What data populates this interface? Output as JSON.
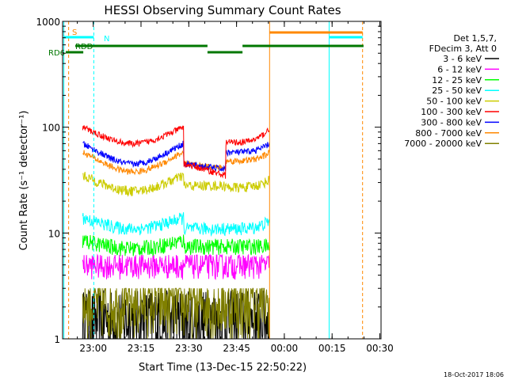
{
  "chart_data": {
    "type": "line",
    "title": "HESSI Observing Summary Count Rates",
    "xlabel": "Start Time (13-Dec-15 22:50:22)",
    "ylabel": "Count Rate (s⁻¹ detector⁻¹)",
    "y_scale": "log",
    "ylim": [
      1,
      1000
    ],
    "x_range_minutes": [
      0,
      100
    ],
    "x_ticks": [
      {
        "label": "23:00",
        "minute": 9.63
      },
      {
        "label": "23:15",
        "minute": 24.63
      },
      {
        "label": "23:30",
        "minute": 39.63
      },
      {
        "label": "23:45",
        "minute": 54.63
      },
      {
        "label": "00:00",
        "minute": 69.63
      },
      {
        "label": "00:15",
        "minute": 84.63
      },
      {
        "label": "00:30",
        "minute": 99.63
      }
    ],
    "y_ticks": [
      {
        "label": "1",
        "value": 1
      },
      {
        "label": "10",
        "value": 10
      },
      {
        "label": "100",
        "value": 100
      },
      {
        "label": "1000",
        "value": 1000
      }
    ],
    "legend_header": [
      "Det 1,5,7,",
      "FDecim 3, Att 0"
    ],
    "legend_position": "right",
    "series": [
      {
        "name": "3 - 6 keV",
        "color": "#000000",
        "level": "~1-3, highly noisy"
      },
      {
        "name": "6 - 12 keV",
        "color": "#ff00ff",
        "level": "~4-6"
      },
      {
        "name": "12 - 25 keV",
        "color": "#00ff00",
        "level": "~7-9"
      },
      {
        "name": "25 - 50 keV",
        "color": "#00ffff",
        "level": "~11-15"
      },
      {
        "name": "50 - 100 keV",
        "color": "#cccc00",
        "level": "~25-35"
      },
      {
        "name": "100 - 300 keV",
        "color": "#ff0000",
        "level": "~65-95"
      },
      {
        "name": "300 - 800 keV",
        "color": "#0000ff",
        "level": "~45-65"
      },
      {
        "name": "800 - 7000 keV",
        "color": "#ff8800",
        "level": "~38-55"
      },
      {
        "name": "7000 - 20000 keV",
        "color": "#808000",
        "level": "~1-3, noisy"
      }
    ],
    "flags": [
      {
        "label": "S",
        "color": "#ff8800"
      },
      {
        "label": "N",
        "color": "#00ffff"
      },
      {
        "label": "RDD",
        "color": "#007700"
      },
      {
        "label": "RD6",
        "color": "#007700"
      }
    ],
    "timestamp": "18-Oct-2017 18:06"
  }
}
